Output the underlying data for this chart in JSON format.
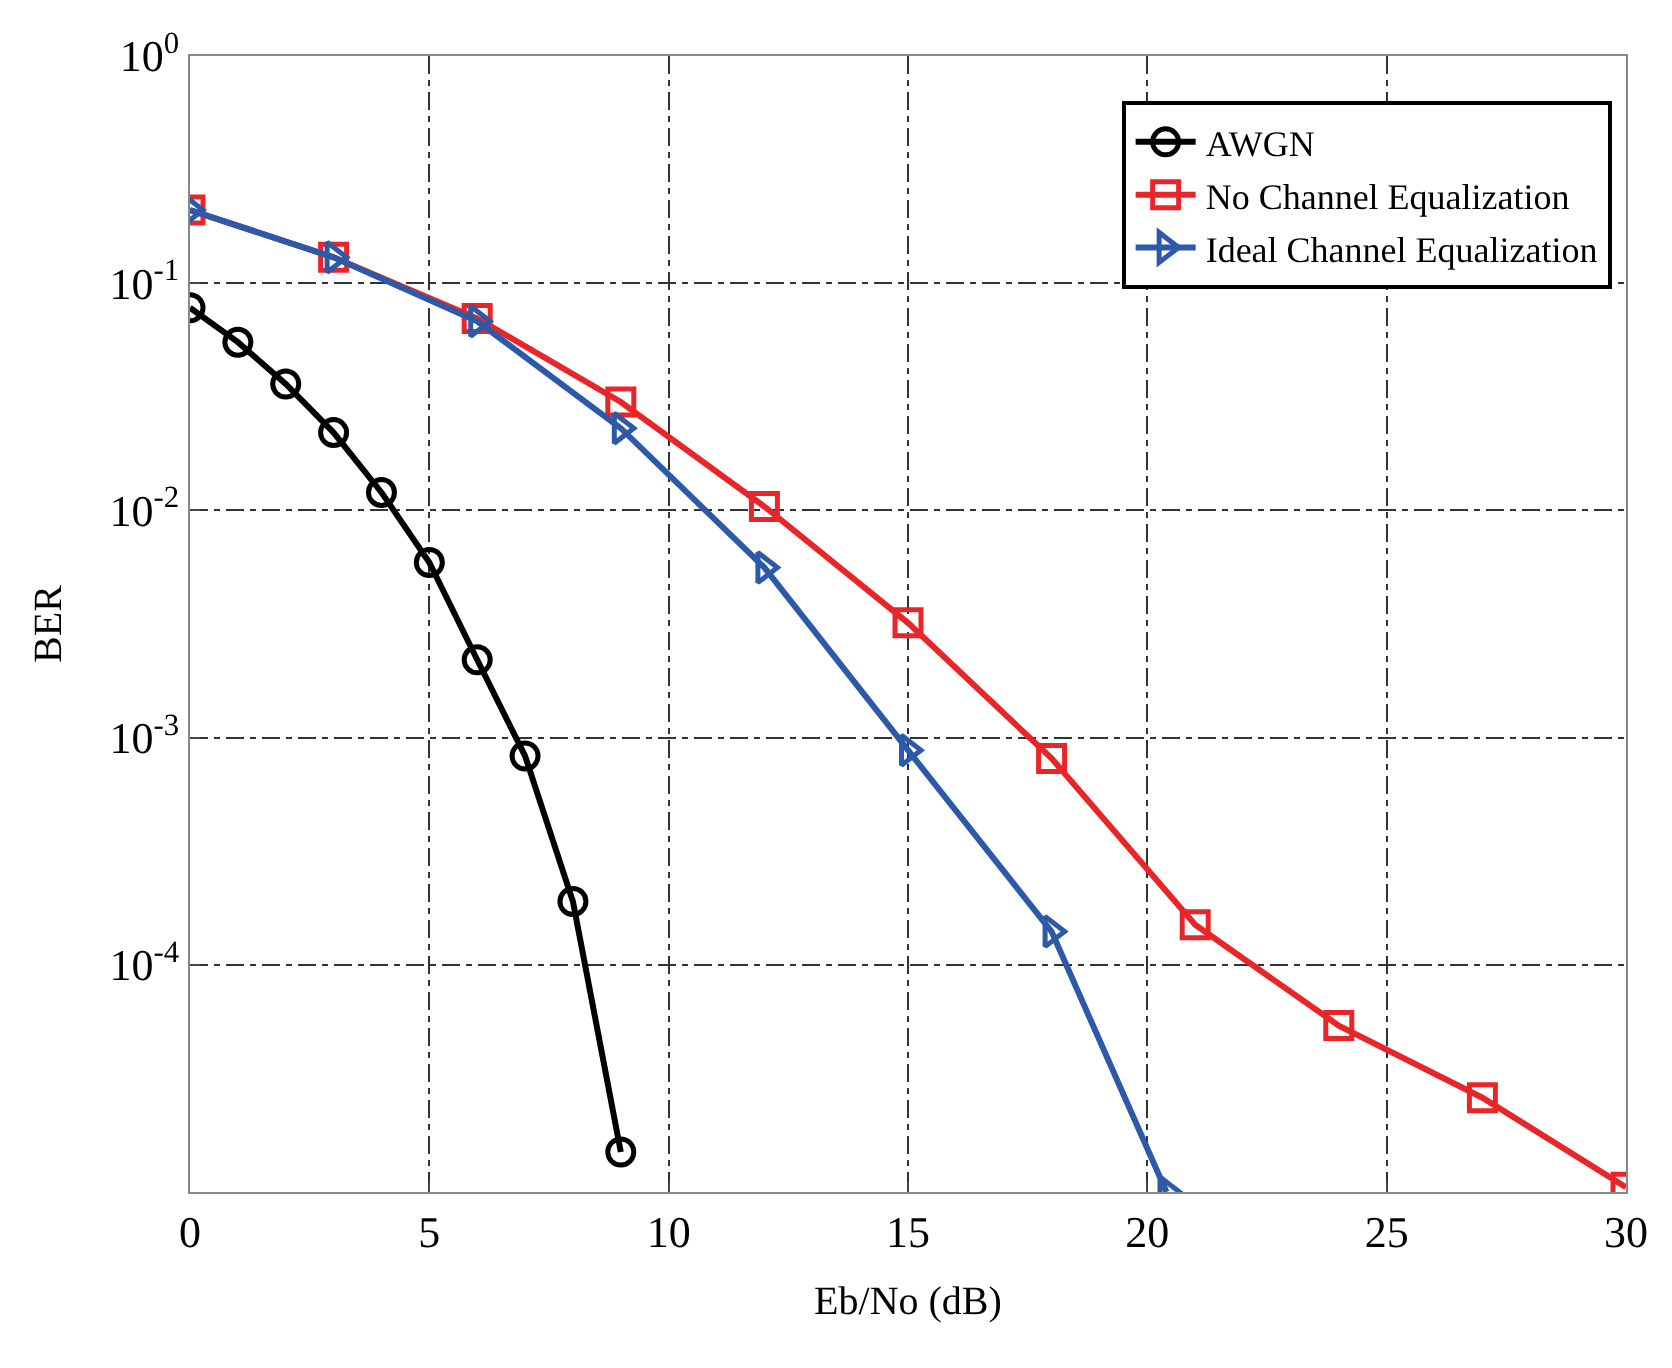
{
  "chart_data": {
    "type": "line",
    "xlabel": "Eb/No (dB)",
    "ylabel": "BER",
    "log": "y",
    "xlim": [
      0,
      30
    ],
    "xticks": [
      0,
      5,
      10,
      15,
      20,
      25,
      30
    ],
    "ylim": [
      1e-05,
      1
    ],
    "yticks": [
      {
        "value": 1,
        "label": "10$^{0}$"
      },
      {
        "value": 0.1,
        "label": "10$^{-1}$"
      },
      {
        "value": 0.01,
        "label": "10$^{-2}$"
      },
      {
        "value": 0.001,
        "label": "10$^{-3}$"
      },
      {
        "value": 0.0001,
        "label": "10$^{-4}$"
      }
    ],
    "grid": true,
    "legend": "top right",
    "line_style": "solid",
    "series": [
      {
        "name": "AWGN",
        "color": "#000000",
        "marker": "circle",
        "x": [
          0,
          1,
          2,
          3,
          4,
          5,
          6,
          7,
          8,
          9
        ],
        "values": [
          0.078,
          0.055,
          0.036,
          0.022,
          0.012,
          0.0059,
          0.0022,
          0.00083,
          0.00019,
          1.5e-05
        ]
      },
      {
        "name": "No Channel Equalization",
        "color": "#e8262a",
        "marker": "square",
        "x": [
          0,
          3,
          6,
          9,
          12,
          15,
          18,
          21,
          24,
          27,
          30
        ],
        "values": [
          0.21,
          0.13,
          0.07,
          0.03,
          0.0104,
          0.0032,
          0.00081,
          0.00015,
          5.4e-05,
          2.6e-05,
          1.05e-05
        ]
      },
      {
        "name": "Ideal Channel Equalization",
        "color": "#2d5aa8",
        "marker": "triangle",
        "x": [
          0,
          3,
          6,
          9,
          12,
          15,
          18,
          20.4
        ],
        "values": [
          0.21,
          0.13,
          0.068,
          0.023,
          0.0056,
          0.00088,
          0.00014,
          1e-05
        ]
      }
    ]
  }
}
